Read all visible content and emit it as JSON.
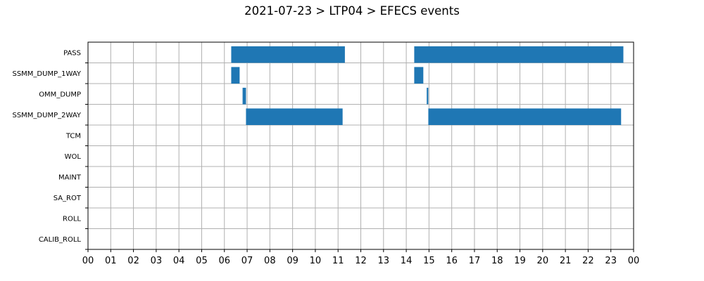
{
  "chart_data": {
    "type": "gantt",
    "title": "2021-07-23 > LTP04 > EFECS events",
    "xlabel": "",
    "ylabel": "",
    "x_range_hours": [
      0,
      24
    ],
    "x_tick_labels": [
      "00",
      "01",
      "02",
      "03",
      "04",
      "05",
      "06",
      "07",
      "08",
      "09",
      "10",
      "11",
      "12",
      "13",
      "14",
      "15",
      "16",
      "17",
      "18",
      "19",
      "20",
      "21",
      "22",
      "23",
      "00"
    ],
    "categories": [
      "PASS",
      "SSMM_DUMP_1WAY",
      "OMM_DUMP",
      "SSMM_DUMP_2WAY",
      "TCM",
      "WOL",
      "MAINT",
      "SA_ROT",
      "ROLL",
      "CALIB_ROLL"
    ],
    "grid": true,
    "bar_color": "#1f77b4",
    "events": [
      {
        "category": "PASS",
        "start": 6.3,
        "end": 11.3
      },
      {
        "category": "PASS",
        "start": 14.35,
        "end": 23.55
      },
      {
        "category": "SSMM_DUMP_1WAY",
        "start": 6.3,
        "end": 6.67
      },
      {
        "category": "SSMM_DUMP_1WAY",
        "start": 14.35,
        "end": 14.75
      },
      {
        "category": "OMM_DUMP",
        "start": 6.8,
        "end": 6.95
      },
      {
        "category": "OMM_DUMP",
        "start": 14.9,
        "end": 14.97
      },
      {
        "category": "SSMM_DUMP_2WAY",
        "start": 6.95,
        "end": 11.2
      },
      {
        "category": "SSMM_DUMP_2WAY",
        "start": 14.97,
        "end": 23.45
      }
    ]
  }
}
